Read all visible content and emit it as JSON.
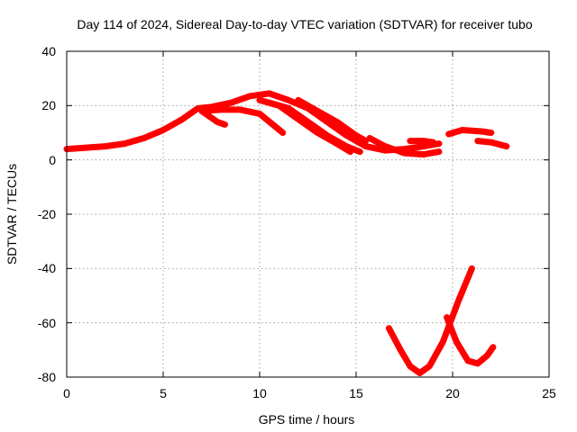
{
  "chart_data": {
    "type": "scatter",
    "title": "Day 114 of 2024, Sidereal Day-to-day VTEC variation (SDTVAR) for receiver tubo",
    "xlabel": "GPS time / hours",
    "ylabel": "SDTVAR / TECUs",
    "xlim": [
      0,
      25
    ],
    "ylim": [
      -80,
      40
    ],
    "xticks": [
      "0",
      "5",
      "10",
      "15",
      "20",
      "25"
    ],
    "yticks": [
      "40",
      "20",
      "0",
      "-20",
      "-40",
      "-60",
      "-80"
    ],
    "grid": true,
    "color": "#ff0000",
    "series": [
      {
        "name": "main-arc",
        "x": [
          0,
          1,
          2,
          3,
          4,
          5,
          6,
          6.8,
          7.5,
          8.5,
          9.5,
          10.5,
          11.5,
          12.5,
          13.5,
          14.5,
          15.5,
          16.5,
          17.5,
          18.5,
          19.3
        ],
        "y": [
          4,
          4.5,
          5,
          6,
          8,
          11,
          15,
          19,
          19.5,
          21,
          23.5,
          24.5,
          22,
          19,
          14,
          9,
          5,
          3.5,
          4,
          5,
          6
        ]
      },
      {
        "name": "secondary-track-a",
        "x": [
          7,
          8,
          9,
          10,
          11.2
        ],
        "y": [
          18,
          18.5,
          18.5,
          17,
          10
        ]
      },
      {
        "name": "secondary-track-b",
        "x": [
          10,
          11,
          12,
          13,
          14,
          14.7
        ],
        "y": [
          22,
          20,
          15,
          10,
          6,
          3
        ]
      },
      {
        "name": "secondary-track-c",
        "x": [
          10.5,
          11.5,
          12.5,
          13.5,
          14.5,
          15.2
        ],
        "y": [
          21,
          19,
          14,
          9,
          5,
          3
        ]
      },
      {
        "name": "secondary-track-d",
        "x": [
          12,
          13,
          14,
          15,
          15.5
        ],
        "y": [
          22,
          18,
          14,
          9,
          7
        ]
      },
      {
        "name": "dip-track-a",
        "x": [
          7,
          7.4,
          7.8,
          8.2
        ],
        "y": [
          18,
          16,
          14,
          13
        ]
      },
      {
        "name": "trough-track-a",
        "x": [
          15.7,
          16.5,
          17.5,
          18.5,
          19.3
        ],
        "y": [
          8,
          5,
          2.5,
          2,
          3
        ]
      },
      {
        "name": "late-track-a",
        "x": [
          17.8,
          18.5,
          19
        ],
        "y": [
          7,
          7,
          6.5
        ]
      },
      {
        "name": "late-track-b",
        "x": [
          19.8,
          20.5,
          21.5,
          22
        ],
        "y": [
          9.5,
          11,
          10.5,
          10
        ]
      },
      {
        "name": "late-track-c",
        "x": [
          21.3,
          22,
          22.8
        ],
        "y": [
          7,
          6.5,
          5
        ]
      },
      {
        "name": "low-arc-a",
        "x": [
          16.7,
          17.3,
          17.8,
          18.3,
          18.8,
          19.5,
          20.3,
          21
        ],
        "y": [
          -62,
          -70,
          -76,
          -78.5,
          -76,
          -67,
          -52,
          -40
        ]
      },
      {
        "name": "low-arc-b",
        "x": [
          19.7,
          20.2,
          20.8,
          21.3,
          21.8,
          22.1
        ],
        "y": [
          -58,
          -67,
          -74,
          -75,
          -72,
          -69
        ]
      }
    ]
  }
}
